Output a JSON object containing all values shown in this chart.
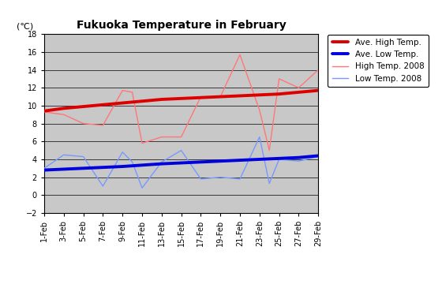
{
  "title": "Fukuoka Temperature in February",
  "unit_label": "(℃)",
  "ylim": [
    -2,
    18
  ],
  "yticks": [
    -2,
    0,
    2,
    4,
    6,
    8,
    10,
    12,
    14,
    16,
    18
  ],
  "x_labels": [
    "1-Feb",
    "3-Feb",
    "5-Feb",
    "7-Feb",
    "9-Feb",
    "11-Feb",
    "13-Feb",
    "15-Feb",
    "17-Feb",
    "19-Feb",
    "21-Feb",
    "23-Feb",
    "25-Feb",
    "27-Feb",
    "29-Feb"
  ],
  "x_tick_positions": [
    1,
    3,
    5,
    7,
    9,
    11,
    13,
    15,
    17,
    19,
    21,
    23,
    25,
    27,
    29
  ],
  "ave_high_x": [
    1,
    3,
    5,
    7,
    9,
    11,
    13,
    15,
    17,
    19,
    21,
    23,
    25,
    27,
    29
  ],
  "ave_high_y": [
    9.4,
    9.7,
    9.9,
    10.1,
    10.3,
    10.5,
    10.7,
    10.8,
    10.9,
    11.0,
    11.1,
    11.2,
    11.3,
    11.5,
    11.7
  ],
  "ave_low_x": [
    1,
    3,
    5,
    7,
    9,
    11,
    13,
    15,
    17,
    19,
    21,
    23,
    25,
    27,
    29
  ],
  "ave_low_y": [
    2.8,
    2.9,
    3.0,
    3.1,
    3.2,
    3.35,
    3.5,
    3.6,
    3.7,
    3.8,
    3.9,
    4.0,
    4.1,
    4.2,
    4.4
  ],
  "high_2008_x": [
    1,
    3,
    5,
    7,
    9,
    10,
    11,
    13,
    15,
    17,
    19,
    21,
    23,
    24,
    25,
    27,
    29
  ],
  "high_2008_y": [
    9.3,
    9.0,
    8.0,
    7.8,
    11.7,
    11.5,
    5.8,
    6.5,
    6.5,
    11.0,
    11.0,
    15.7,
    9.5,
    5.0,
    13.0,
    12.0,
    14.0
  ],
  "low_2008_x": [
    1,
    3,
    5,
    7,
    9,
    10,
    11,
    13,
    15,
    17,
    19,
    21,
    23,
    24,
    25,
    27,
    29
  ],
  "low_2008_y": [
    3.0,
    4.5,
    4.3,
    1.0,
    4.8,
    3.7,
    0.8,
    3.7,
    5.0,
    1.8,
    2.0,
    1.8,
    6.5,
    1.3,
    4.0,
    3.8,
    4.3
  ],
  "ave_high_color": "#dd0000",
  "ave_low_color": "#0000dd",
  "high_2008_color": "#ff7777",
  "low_2008_color": "#7799ff",
  "bg_color": "#c8c8c8",
  "plot_bg": "#c8c8c8",
  "legend_labels": [
    "Ave. High Temp.",
    "Ave. Low Temp.",
    "High Temp. 2008",
    "Low Temp. 2008"
  ]
}
